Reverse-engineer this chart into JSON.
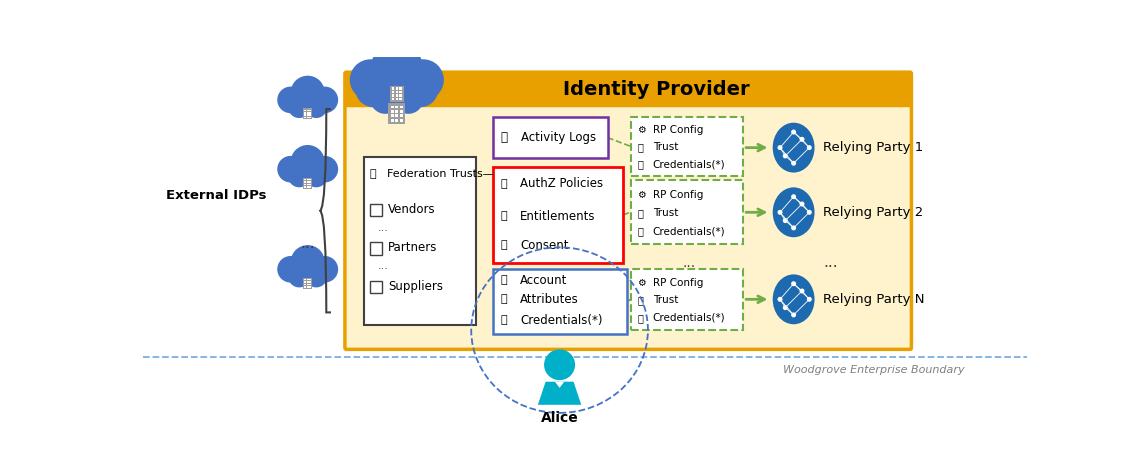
{
  "title": "Identity Provider",
  "background_color": "#ffffff",
  "idp_box_facecolor": "#FEF3CD",
  "idp_border_color": "#E8A000",
  "title_bar_color": "#E8A000",
  "external_idps_label": "External IDPs",
  "woodgrove_label": "Woodgrove Enterprise Boundary",
  "activity_logs_label": "Activity Logs",
  "authz_items": [
    "AuthZ Policies",
    "Entitlements",
    "Consent"
  ],
  "account_items": [
    "Account",
    "Attributes",
    "Credentials(*)"
  ],
  "rp_items": [
    "RP Config",
    "Trust",
    "Credentials(*)"
  ],
  "relying_parties": [
    "Relying Party 1",
    "Relying Party 2",
    "Relying Party N"
  ],
  "arrow_color": "#70AD47",
  "alice_label": "Alice",
  "alice_color": "#00B0C8",
  "purple_color": "#7030A0",
  "red_color": "#FF0000",
  "blue_color": "#4472C4",
  "cloud_color": "#4472C4",
  "dark_border": "#404040",
  "green_border": "#70AD47",
  "left_items": [
    "Federation Trusts",
    "Vendors",
    "...",
    "Partners",
    "...",
    "Suppliers"
  ],
  "fig_w": 11.41,
  "fig_h": 4.73
}
